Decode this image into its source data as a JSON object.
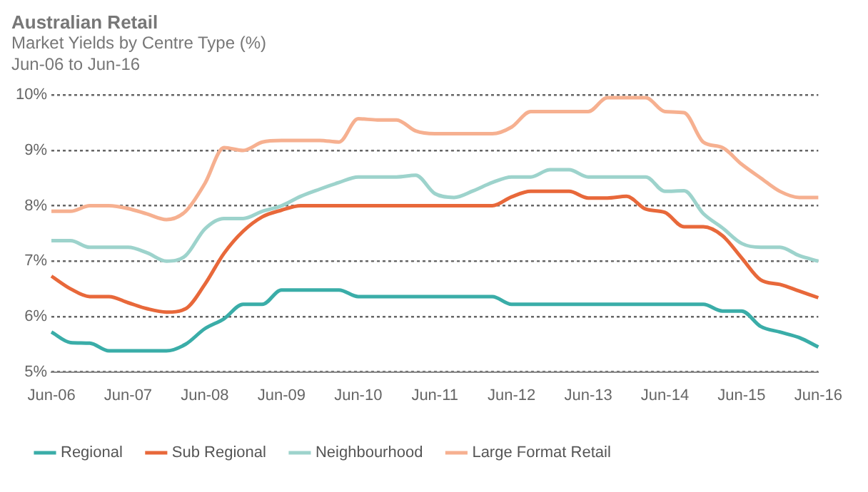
{
  "chart_data": {
    "type": "line",
    "title": "Australian Retail",
    "subtitle": "Market Yields by Centre Type (%)",
    "annotations": [
      "Jun-06 to Jun-16"
    ],
    "categories": [
      "Jun-06",
      null,
      null,
      null,
      "Jun-07",
      null,
      null,
      null,
      "Jun-08",
      null,
      null,
      null,
      "Jun-09",
      null,
      null,
      null,
      "Jun-10",
      null,
      null,
      null,
      "Jun-11",
      null,
      null,
      null,
      "Jun-12",
      null,
      null,
      null,
      "Jun-13",
      null,
      null,
      null,
      "Jun-14",
      null,
      null,
      null,
      "Jun-15",
      null,
      null,
      null,
      "Jun-16"
    ],
    "series": [
      {
        "name": "Regional",
        "color": "#3aada8",
        "values": [
          5.72,
          5.53,
          5.52,
          5.38,
          5.38,
          5.38,
          5.38,
          5.5,
          5.78,
          5.96,
          6.22,
          6.22,
          6.48,
          6.48,
          6.48,
          6.48,
          6.36,
          6.36,
          6.36,
          6.36,
          6.36,
          6.36,
          6.36,
          6.36,
          6.22,
          6.22,
          6.22,
          6.22,
          6.22,
          6.22,
          6.22,
          6.22,
          6.22,
          6.22,
          6.22,
          6.1,
          6.1,
          5.82,
          5.72,
          5.62,
          5.45
        ]
      },
      {
        "name": "Sub Regional",
        "color": "#e8683a",
        "values": [
          6.73,
          6.5,
          6.36,
          6.36,
          6.25,
          6.14,
          6.08,
          6.14,
          6.58,
          7.14,
          7.54,
          7.8,
          7.92,
          8.0,
          8.0,
          8.0,
          8.0,
          8.0,
          8.0,
          8.0,
          8.0,
          8.0,
          8.0,
          8.0,
          8.16,
          8.26,
          8.26,
          8.26,
          8.14,
          8.14,
          8.17,
          7.94,
          7.88,
          7.62,
          7.62,
          7.46,
          7.06,
          6.66,
          6.58,
          6.46,
          6.34
        ]
      },
      {
        "name": "Neighbourhood",
        "color": "#9dd3cc",
        "values": [
          7.37,
          7.37,
          7.25,
          7.25,
          7.25,
          7.15,
          7.0,
          7.1,
          7.58,
          7.77,
          7.77,
          7.9,
          8.0,
          8.17,
          8.3,
          8.42,
          8.52,
          8.52,
          8.52,
          8.55,
          8.22,
          8.15,
          8.27,
          8.42,
          8.52,
          8.52,
          8.65,
          8.65,
          8.52,
          8.52,
          8.52,
          8.52,
          8.26,
          8.27,
          7.86,
          7.6,
          7.32,
          7.25,
          7.25,
          7.1,
          7.0
        ]
      },
      {
        "name": "Large Format Retail",
        "color": "#f6b090",
        "values": [
          7.9,
          7.9,
          8.0,
          8.0,
          7.95,
          7.85,
          7.75,
          7.9,
          8.4,
          9.05,
          9.0,
          9.15,
          9.18,
          9.18,
          9.18,
          9.15,
          9.57,
          9.55,
          9.55,
          9.35,
          9.3,
          9.3,
          9.3,
          9.3,
          9.42,
          9.7,
          9.7,
          9.7,
          9.7,
          9.95,
          9.95,
          9.95,
          9.7,
          9.68,
          9.15,
          9.05,
          8.75,
          8.5,
          8.26,
          8.15,
          8.15
        ]
      }
    ],
    "ylim": [
      5,
      10
    ],
    "yticks": [
      {
        "value": 5,
        "label": "5%"
      },
      {
        "value": 6,
        "label": "6%"
      },
      {
        "value": 7,
        "label": "7%"
      },
      {
        "value": 8,
        "label": "8%"
      },
      {
        "value": 9,
        "label": "9%"
      },
      {
        "value": 10,
        "label": "10%"
      }
    ],
    "grid": "y",
    "legend": "bottom",
    "marker": "none",
    "line_style": "solid"
  }
}
